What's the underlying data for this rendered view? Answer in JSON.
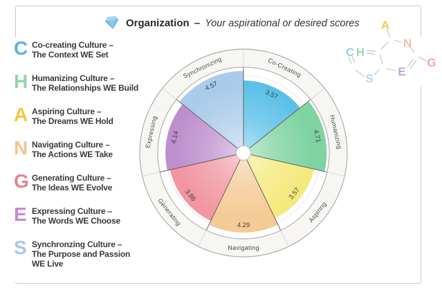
{
  "header": {
    "title_bold": "Organization",
    "separator": "–",
    "subtitle_italic": "Your aspirational or desired scores",
    "gem_icon_color": "#8ec9eb"
  },
  "legend": {
    "items": [
      {
        "letter": "C",
        "color": "#55b3e3",
        "line1": "Co-creating Culture –",
        "line2": "The Context WE Set"
      },
      {
        "letter": "H",
        "color": "#93d5aa",
        "line1": "Humanizing Culture –",
        "line2": "The Relationships WE Build"
      },
      {
        "letter": "A",
        "color": "#f3c83e",
        "line1": "Aspiring Culture –",
        "line2": "The Dreams WE Hold"
      },
      {
        "letter": "N",
        "color": "#f3c491",
        "line1": "Navigating Culture –",
        "line2": "The Actions WE Take"
      },
      {
        "letter": "G",
        "color": "#e9808f",
        "line1": "Generating Culture –",
        "line2": "The Ideas WE Evolve"
      },
      {
        "letter": "E",
        "color": "#c489cd",
        "line1": "Expressing Culture –",
        "line2": "The Words WE Choose"
      },
      {
        "letter": "S",
        "color": "#a5c9ea",
        "line1": "Synchronzing Culture –",
        "line2": "The Purpose and Passion",
        "line3": "WE Live"
      }
    ]
  },
  "chart_data": {
    "type": "polar_area",
    "title": "Organization – Your aspirational or desired scores",
    "categories": [
      "Co-Creating",
      "Humanizing",
      "Aspiring",
      "Navigating",
      "Generating",
      "Expressing",
      "Synchronizing"
    ],
    "values": [
      3.57,
      4.71,
      3.57,
      4.29,
      3.86,
      4.14,
      4.57
    ],
    "colors": [
      "#5bc0e8",
      "#7fd3a1",
      "#f4e97b",
      "#f4ca95",
      "#f295a0",
      "#bd90cd",
      "#aacbe9"
    ],
    "scale": {
      "min": 0,
      "max": 5,
      "radial_mapping": "sqrt"
    },
    "start_angle": "top",
    "direction": "clockwise",
    "legend_position": "outer-ring-labels",
    "grid": "single faint inner circle",
    "value_label_color": "#3e3e3e",
    "ring_label_color": "#4a4a4a"
  },
  "logo": {
    "name": "CHANGES molecule logo",
    "letters": [
      {
        "char": "A",
        "color": "#f0c243"
      },
      {
        "char": "N",
        "color": "#f5b98b"
      },
      {
        "char": "C",
        "color": "#7ecbea"
      },
      {
        "char": "H",
        "color": "#8fd4a5"
      },
      {
        "char": "G",
        "color": "#f2929b"
      },
      {
        "char": "E",
        "color": "#b592d2"
      },
      {
        "char": "S",
        "color": "#a8ccec"
      }
    ],
    "bond_color": "#cccccc"
  }
}
